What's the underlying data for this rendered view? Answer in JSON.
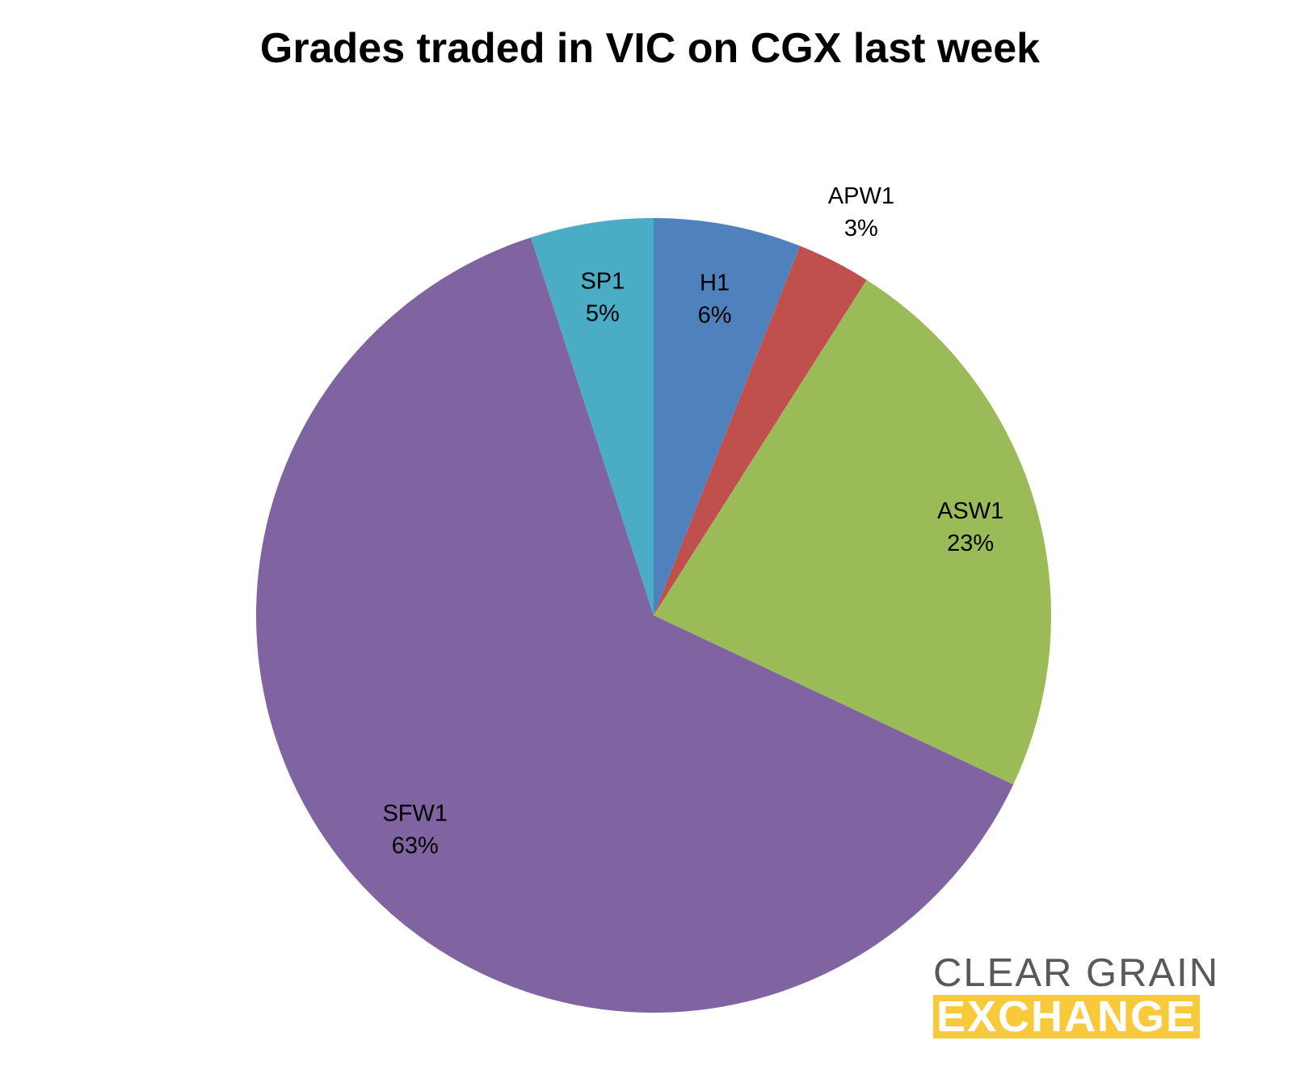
{
  "chart_data": {
    "type": "pie",
    "title": "Grades traded in VIC on CGX last week",
    "slices": [
      {
        "label": "H1",
        "value": 6,
        "value_label": "6%",
        "color": "#4f81bd"
      },
      {
        "label": "APW1",
        "value": 3,
        "value_label": "3%",
        "color": "#c0504d"
      },
      {
        "label": "ASW1",
        "value": 23,
        "value_label": "23%",
        "color": "#9bbb59"
      },
      {
        "label": "SFW1",
        "value": 63,
        "value_label": "63%",
        "color": "#8064a2"
      },
      {
        "label": "SP1",
        "value": 5,
        "value_label": "5%",
        "color": "#4bacc6"
      }
    ],
    "start_angle": "12 o'clock",
    "direction": "clockwise",
    "legend": "none"
  },
  "logo": {
    "line1": "CLEAR GRAIN",
    "line2": "EXCHANGE",
    "line1_color": "#595959",
    "line2_bg": "#f9c93c"
  }
}
